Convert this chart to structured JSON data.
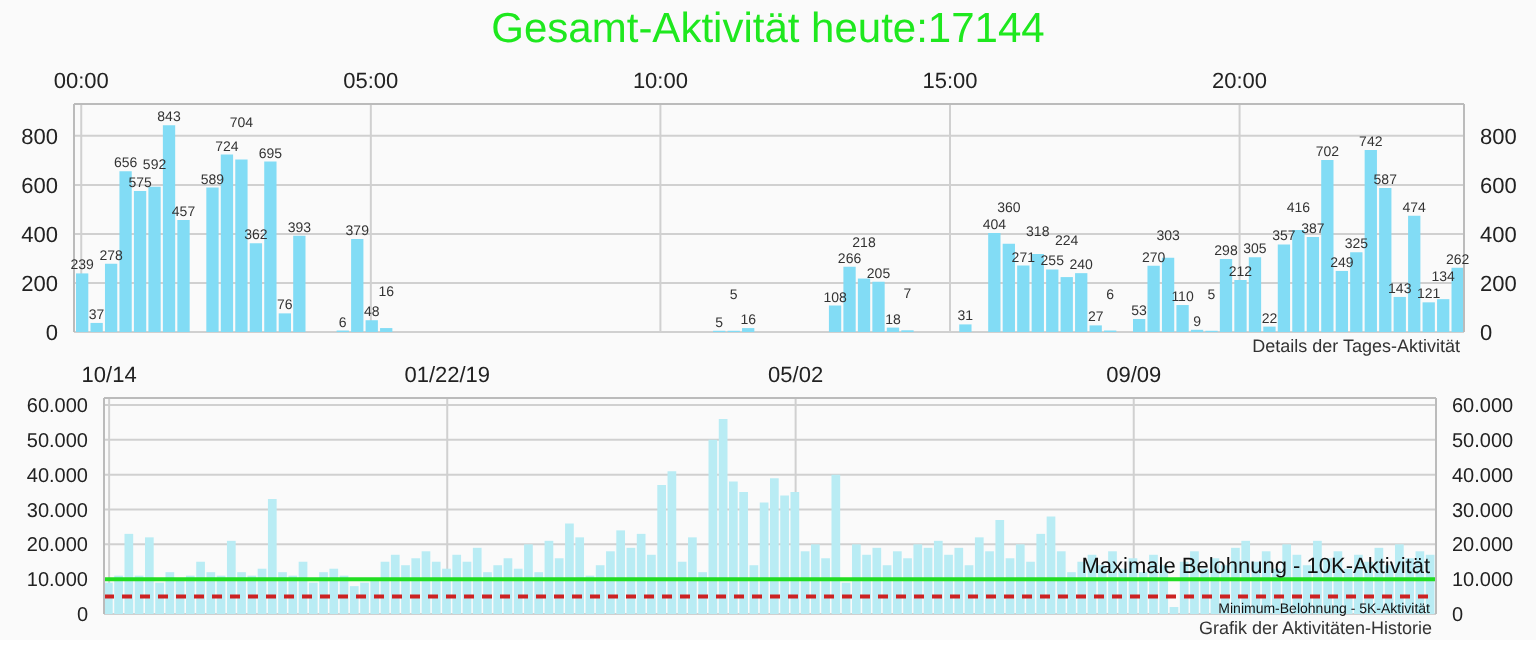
{
  "chart_data": [
    {
      "type": "bar",
      "title": "Gesamt-Aktivität heute:17144",
      "color": "#82dcf5",
      "x": [
        0,
        0.25,
        0.5,
        0.75,
        1,
        1.25,
        1.5,
        1.75,
        2.25,
        2.5,
        2.75,
        3,
        3.25,
        3.5,
        3.75,
        4.5,
        4.75,
        5,
        5.25,
        11,
        11.25,
        11.5,
        13,
        13.25,
        13.5,
        13.75,
        14,
        14.25,
        15.25,
        15.75,
        16,
        16.25,
        16.5,
        16.75,
        17,
        17.25,
        17.5,
        17.75,
        18.25,
        18.5,
        18.75,
        19,
        19.25,
        19.5,
        19.75,
        20,
        20.25,
        20.5,
        20.75,
        21,
        21.25,
        21.5,
        21.75,
        22,
        22.25,
        22.5,
        22.75,
        23,
        23.25,
        23.5,
        23.75
      ],
      "values": [
        239,
        37,
        278,
        656,
        575,
        592,
        843,
        457,
        589,
        724,
        704,
        362,
        695,
        76,
        393,
        6,
        379,
        48,
        16,
        5,
        5,
        16,
        108,
        266,
        218,
        205,
        18,
        7,
        31,
        404,
        360,
        271,
        318,
        255,
        224,
        240,
        27,
        6,
        53,
        270,
        303,
        110,
        9,
        5,
        298,
        212,
        305,
        22,
        357,
        416,
        387,
        702,
        249,
        325,
        742,
        587,
        143,
        474,
        121,
        134,
        262
      ],
      "data_labels": true,
      "xlim": [
        -0.125,
        23.875
      ],
      "xticks": [
        {
          "value": 0,
          "label": "00:00"
        },
        {
          "value": 5,
          "label": "05:00"
        },
        {
          "value": 10,
          "label": "10:00"
        },
        {
          "value": 15,
          "label": "15:00"
        },
        {
          "value": 20,
          "label": "20:00"
        }
      ],
      "ylim": [
        0,
        930
      ],
      "yticks": [
        0,
        200,
        400,
        600,
        800
      ],
      "y2lim": [
        0,
        930
      ],
      "y2ticks": [
        0,
        200,
        400,
        600,
        800
      ],
      "grid": true,
      "annotations": [
        "Details der Tages-Aktivität"
      ]
    },
    {
      "type": "bar",
      "color": "#b9ecf4",
      "categories": [
        "10/14",
        null,
        null,
        null,
        null,
        null,
        null,
        null,
        null,
        null,
        null,
        null,
        null,
        null,
        null,
        null,
        null,
        null,
        null,
        null,
        null,
        null,
        null,
        null,
        null,
        null,
        null,
        null,
        null,
        null,
        null,
        null,
        null,
        "01/22/19",
        null,
        null,
        null,
        null,
        null,
        null,
        null,
        null,
        null,
        null,
        null,
        null,
        null,
        null,
        null,
        null,
        null,
        null,
        null,
        null,
        null,
        null,
        null,
        null,
        null,
        null,
        null,
        null,
        null,
        null,
        null,
        null,
        null,
        "05/02",
        null,
        null,
        null,
        null,
        null,
        null,
        null,
        null,
        null,
        null,
        null,
        null,
        null,
        null,
        null,
        null,
        null,
        null,
        null,
        null,
        null,
        null,
        null,
        null,
        null,
        null,
        null,
        null,
        null,
        null,
        null,
        null,
        "09/09",
        null,
        null,
        null,
        null,
        null,
        null,
        null,
        null,
        null,
        null,
        null,
        null,
        null,
        null,
        null,
        null,
        null,
        null,
        null,
        null,
        null,
        null,
        null,
        null,
        null,
        null,
        null,
        null,
        null
      ],
      "values": [
        9000,
        11000,
        23000,
        11000,
        22000,
        9000,
        12000,
        10000,
        11000,
        15000,
        12000,
        11000,
        21000,
        12000,
        11000,
        13000,
        33000,
        12000,
        11000,
        15000,
        9000,
        12000,
        13000,
        11000,
        8000,
        9000,
        10000,
        15000,
        17000,
        14000,
        16000,
        18000,
        15000,
        13000,
        17000,
        15000,
        19000,
        12000,
        14000,
        16000,
        13000,
        20000,
        12000,
        21000,
        16000,
        26000,
        22000,
        11000,
        14000,
        18000,
        24000,
        19000,
        23000,
        17000,
        37000,
        41000,
        15000,
        22000,
        12000,
        50000,
        56000,
        38000,
        35000,
        14000,
        32000,
        39000,
        34000,
        35000,
        18000,
        20000,
        16000,
        40000,
        9000,
        20000,
        17000,
        19000,
        14000,
        18000,
        16000,
        20000,
        19000,
        21000,
        17000,
        19000,
        14000,
        22000,
        18000,
        27000,
        16000,
        20000,
        15000,
        23000,
        28000,
        18000,
        12000,
        15000,
        17000,
        14000,
        18000,
        13000,
        16000,
        12000,
        17000,
        14000,
        2000,
        15000,
        18000,
        13000,
        16000,
        14000,
        19000,
        21000,
        15000,
        18000,
        13000,
        20000,
        17000,
        14000,
        21000,
        16000,
        18000,
        13000,
        17000,
        15000,
        19000,
        14000,
        20000,
        16000,
        18000,
        17000
      ],
      "ylim": [
        0,
        62000
      ],
      "yticks": [
        0,
        {
          "value": 10000,
          "label": "10.000"
        },
        {
          "value": 20000,
          "label": "20.000"
        },
        {
          "value": 30000,
          "label": "30.000"
        },
        {
          "value": 40000,
          "label": "40.000"
        },
        {
          "value": 50000,
          "label": "50.000"
        },
        {
          "value": 60000,
          "label": "60.000"
        }
      ],
      "y2lim": [
        0,
        62000
      ],
      "y2ticks": [
        0,
        {
          "value": 10000,
          "label": "10.000"
        },
        {
          "value": 20000,
          "label": "20.000"
        },
        {
          "value": 30000,
          "label": "30.000"
        },
        {
          "value": 40000,
          "label": "40.000"
        },
        {
          "value": 50000,
          "label": "50.000"
        },
        {
          "value": 60000,
          "label": "60.000"
        }
      ],
      "grid": true,
      "ref_lines": [
        {
          "axis": "y",
          "value": 10000,
          "label": "Maximale Belohnung - 10K-Aktivität",
          "color": "#22dd22",
          "line_style": "solid"
        },
        {
          "axis": "y",
          "value": 5000,
          "label": "Minimum-Belohnung - 5K-Aktivität",
          "color": "#cc2222",
          "line_style": "dashed"
        }
      ],
      "annotations": [
        "Grafik der Aktivitäten-Historie"
      ]
    }
  ]
}
